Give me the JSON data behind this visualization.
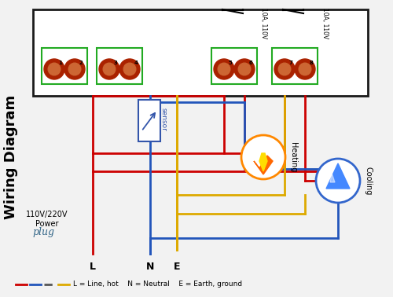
{
  "bg_color": "#f2f2f2",
  "box_color": "#1a1a1a",
  "green_box_color": "#22aa22",
  "terminal_color": "#aa2200",
  "terminal_inner": "#cc6633",
  "wire_red": "#cc0000",
  "wire_blue": "#2255bb",
  "wire_yellow": "#ddaa00",
  "title": "Wiring Diagram",
  "legend_text": "L = Line, hot    N = Neutral    E = Earth, ground",
  "power_label": "110V/220V\nPower",
  "relay_label_1": "10A, 110V",
  "relay_label_2": "10A, 110V",
  "heating_label": "Heating",
  "cooling_label": "Cooling",
  "sensor_label": "sensor",
  "L_label": "L",
  "N_label": "N",
  "E_label": "E"
}
